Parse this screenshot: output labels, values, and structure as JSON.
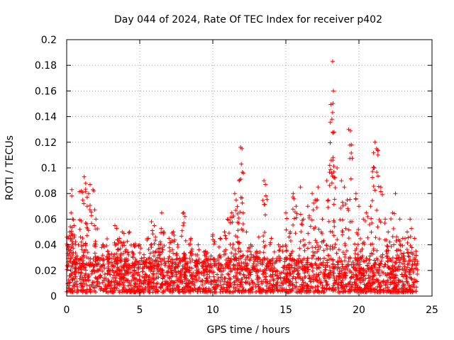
{
  "chart_data": {
    "type": "scatter",
    "title": "Day 044 of 2024, Rate Of TEC Index for receiver p402",
    "xlabel": "GPS time / hours",
    "ylabel": "ROTI / TECUs",
    "xlim": [
      0,
      25
    ],
    "ylim": [
      0,
      0.2
    ],
    "xticks": [
      0,
      5,
      10,
      15,
      20,
      25
    ],
    "xtick_labels": [
      "0",
      "5",
      "10",
      "15",
      "20",
      "25"
    ],
    "yticks": [
      0,
      0.02,
      0.04,
      0.06,
      0.08,
      0.1,
      0.12,
      0.14,
      0.16,
      0.18,
      0.2
    ],
    "ytick_labels": [
      "0",
      "0.02",
      "0.04",
      "0.06",
      "0.08",
      "0.1",
      "0.12",
      "0.14",
      "0.16",
      "0.18",
      "0.2"
    ],
    "grid": true,
    "marker": "+",
    "color": "#ff0000",
    "series": [
      {
        "name": "ROTI",
        "x": [
          0.1,
          0.2,
          0.3,
          0.35,
          0.4,
          0.5,
          0.6,
          0.8,
          1.0,
          1.1,
          1.2,
          1.3,
          1.4,
          1.6,
          1.8,
          1.9,
          2.0,
          2.2,
          2.5,
          2.8,
          3.0,
          3.3,
          3.6,
          3.8,
          4.0,
          4.3,
          4.6,
          5.0,
          5.3,
          5.6,
          5.8,
          6.0,
          6.3,
          6.5,
          6.6,
          7.0,
          7.3,
          7.6,
          8.0,
          8.1,
          8.5,
          9.0,
          9.5,
          10.0,
          10.5,
          10.8,
          11.0,
          11.3,
          11.5,
          11.6,
          11.8,
          11.9,
          11.95,
          12.0,
          12.3,
          12.6,
          13.0,
          13.5,
          13.6,
          14.0,
          14.5,
          15.0,
          15.3,
          15.5,
          15.7,
          16.0,
          16.2,
          16.5,
          16.8,
          17.0,
          17.2,
          17.5,
          17.8,
          18.0,
          18.1,
          18.15,
          18.2,
          18.25,
          18.3,
          18.5,
          18.8,
          19.0,
          19.2,
          19.3,
          19.5,
          19.8,
          20.0,
          20.3,
          20.5,
          20.8,
          21.0,
          21.1,
          21.2,
          21.3,
          21.5,
          21.8,
          22.0,
          22.3,
          22.5,
          22.8,
          23.0,
          23.3,
          23.5,
          23.8,
          23.9
        ],
        "values": [
          0.045,
          0.05,
          0.065,
          0.083,
          0.06,
          0.055,
          0.03,
          0.04,
          0.082,
          0.075,
          0.093,
          0.088,
          0.07,
          0.087,
          0.083,
          0.055,
          0.06,
          0.03,
          0.04,
          0.035,
          0.02,
          0.055,
          0.045,
          0.05,
          0.035,
          0.05,
          0.04,
          0.04,
          0.03,
          0.045,
          0.058,
          0.055,
          0.04,
          0.065,
          0.05,
          0.045,
          0.05,
          0.04,
          0.065,
          0.062,
          0.045,
          0.04,
          0.035,
          0.048,
          0.045,
          0.05,
          0.06,
          0.065,
          0.08,
          0.075,
          0.09,
          0.116,
          0.103,
          0.115,
          0.05,
          0.04,
          0.035,
          0.09,
          0.087,
          0.045,
          0.04,
          0.065,
          0.05,
          0.08,
          0.07,
          0.085,
          0.06,
          0.07,
          0.08,
          0.075,
          0.085,
          0.06,
          0.09,
          0.102,
          0.106,
          0.138,
          0.183,
          0.16,
          0.128,
          0.1,
          0.09,
          0.085,
          0.075,
          0.13,
          0.118,
          0.08,
          0.07,
          0.06,
          0.065,
          0.07,
          0.1,
          0.12,
          0.115,
          0.11,
          0.085,
          0.06,
          0.05,
          0.065,
          0.08,
          0.06,
          0.045,
          0.05,
          0.06,
          0.045,
          0.035
        ]
      }
    ],
    "baseline_band": {
      "note": "dense cloud of points between 0.005 and 0.03 TECUs across 0-24 hours",
      "min": 0.003,
      "max": 0.03,
      "x_start": 0,
      "x_end": 24
    }
  }
}
